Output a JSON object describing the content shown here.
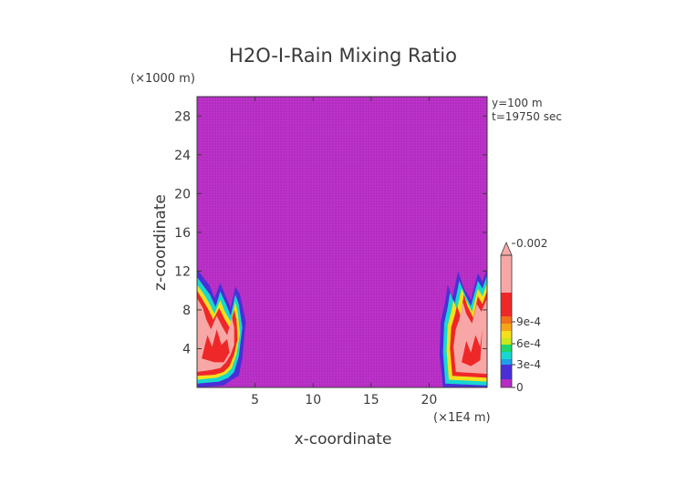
{
  "chart_data": {
    "type": "heatmap",
    "title": "H2O-I-Rain Mixing Ratio",
    "xlabel": "x-coordinate",
    "ylabel": "z-coordinate",
    "x_unit": "(×1E4 m)",
    "y_unit": "(×1000 m)",
    "annotations": [
      "y=100 m",
      "t=19750 sec"
    ],
    "xlim": [
      0,
      25
    ],
    "ylim": [
      0,
      30
    ],
    "xticks": [
      {
        "value": 5,
        "label": "5"
      },
      {
        "value": 10,
        "label": "10"
      },
      {
        "value": 15,
        "label": "15"
      },
      {
        "value": 20,
        "label": "20"
      }
    ],
    "yticks": [
      {
        "value": 4,
        "label": "4"
      },
      {
        "value": 8,
        "label": "8"
      },
      {
        "value": 12,
        "label": "12"
      },
      {
        "value": 16,
        "label": "16"
      },
      {
        "value": 20,
        "label": "20"
      },
      {
        "value": 24,
        "label": "24"
      },
      {
        "value": 28,
        "label": "28"
      }
    ],
    "background_color": "#b52bc3",
    "colorbar": {
      "min": 0,
      "max": 0.002,
      "levels": [
        {
          "from": 0,
          "to": 0.00015,
          "color": "#b52bc3"
        },
        {
          "from": 0.00015,
          "to": 0.0003,
          "color": "#4a2fd8"
        },
        {
          "from": 0.0003,
          "to": 0.0004,
          "color": "#1f9fe8"
        },
        {
          "from": 0.0004,
          "to": 0.0005,
          "color": "#17d7d0"
        },
        {
          "from": 0.0005,
          "to": 0.0006,
          "color": "#1fd86a"
        },
        {
          "from": 0.0006,
          "to": 0.0007,
          "color": "#c9e81e"
        },
        {
          "from": 0.0007,
          "to": 0.0008,
          "color": "#f4e01c"
        },
        {
          "from": 0.0008,
          "to": 0.0009,
          "color": "#f5a419"
        },
        {
          "from": 0.0009,
          "to": 0.001,
          "color": "#f2701c"
        },
        {
          "from": 0.001,
          "to": 0.0012,
          "color": "#ee2828"
        },
        {
          "from": 0.0012,
          "to": 0.002,
          "color": "#f7a8a6"
        }
      ],
      "tick_labels": [
        {
          "value": 0,
          "label": "0"
        },
        {
          "value": 0.0003,
          "label": "3e-4"
        },
        {
          "value": 0.0006,
          "label": "6e-4"
        },
        {
          "value": 0.0009,
          "label": "9e-4"
        },
        {
          "value": 0.002,
          "label": "0.002"
        }
      ]
    },
    "features": [
      {
        "name": "left-storm-cell",
        "x_range": [
          0,
          4.2
        ],
        "z_top": 12
      },
      {
        "name": "right-storm-cell",
        "x_range": [
          21,
          25
        ],
        "z_top": 12
      }
    ]
  }
}
